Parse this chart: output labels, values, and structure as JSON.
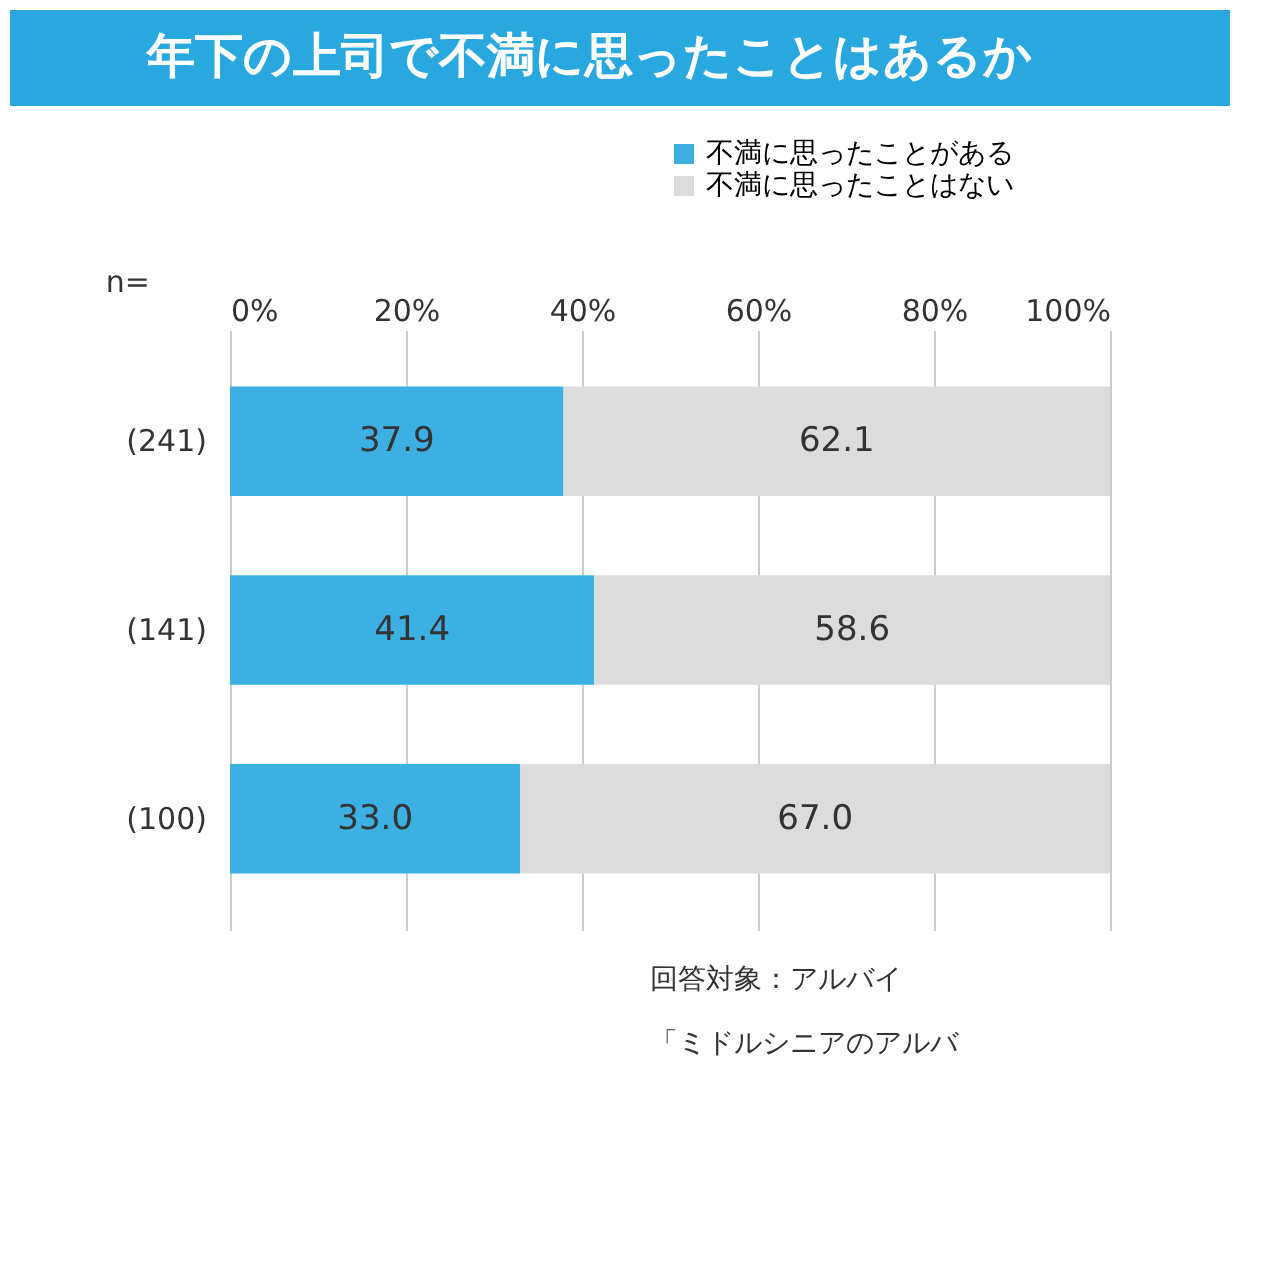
{
  "chart_data": {
    "type": "bar",
    "orientation": "horizontal",
    "stacked": true,
    "title": "年下の上司で不満に思ったことはあるか",
    "categories": [
      "(241)",
      "(141)",
      "(100)"
    ],
    "series": [
      {
        "name": "不満に思ったことがある",
        "color": "#3db0e3",
        "values": [
          37.9,
          41.4,
          33.0
        ],
        "value_labels": [
          "37.9",
          "41.4",
          "33.0"
        ]
      },
      {
        "name": "不満に思ったことはない",
        "color": "#dcdcdc",
        "values": [
          62.1,
          58.6,
          67.0
        ],
        "value_labels": [
          "62.1",
          "58.6",
          "67.0"
        ]
      }
    ],
    "xlim": [
      0,
      100
    ],
    "xticks": [
      {
        "value": 0,
        "label": "0%"
      },
      {
        "value": 20,
        "label": "20%"
      },
      {
        "value": 40,
        "label": "40%"
      },
      {
        "value": 60,
        "label": "60%"
      },
      {
        "value": 80,
        "label": "80%"
      },
      {
        "value": 100,
        "label": "100%"
      }
    ],
    "grid": "x",
    "legend": "top right",
    "annotations": [
      "n=",
      "回答対象：アルバイ",
      "「ミドルシニアのアルバ"
    ]
  }
}
